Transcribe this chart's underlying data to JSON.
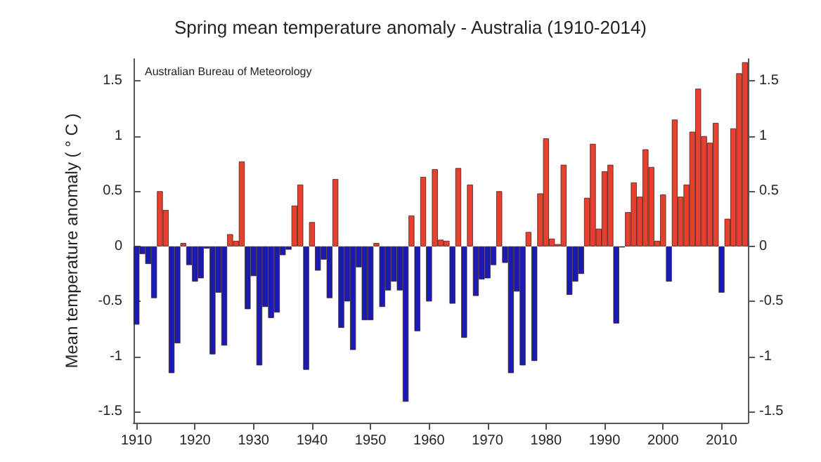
{
  "chart_data": {
    "type": "bar",
    "title": "Spring mean temperature anomaly - Australia (1910-2014)",
    "ylabel": "Mean temperature anomaly ( ° C )",
    "annotations": [
      "Australian Bureau of Meteorology"
    ],
    "x": [
      1910,
      1911,
      1912,
      1913,
      1914,
      1915,
      1916,
      1917,
      1918,
      1919,
      1920,
      1921,
      1922,
      1923,
      1924,
      1925,
      1926,
      1927,
      1928,
      1929,
      1930,
      1931,
      1932,
      1933,
      1934,
      1935,
      1936,
      1937,
      1938,
      1939,
      1940,
      1941,
      1942,
      1943,
      1944,
      1945,
      1946,
      1947,
      1948,
      1949,
      1950,
      1951,
      1952,
      1953,
      1954,
      1955,
      1956,
      1957,
      1958,
      1959,
      1960,
      1961,
      1962,
      1963,
      1964,
      1965,
      1966,
      1967,
      1968,
      1969,
      1970,
      1971,
      1972,
      1973,
      1974,
      1975,
      1976,
      1977,
      1978,
      1979,
      1980,
      1981,
      1982,
      1983,
      1984,
      1985,
      1986,
      1987,
      1988,
      1989,
      1990,
      1991,
      1992,
      1993,
      1994,
      1995,
      1996,
      1997,
      1998,
      1999,
      2000,
      2001,
      2002,
      2003,
      2004,
      2005,
      2006,
      2007,
      2008,
      2009,
      2010,
      2011,
      2012,
      2013,
      2014
    ],
    "values": [
      -0.71,
      -0.07,
      -0.16,
      -0.47,
      0.5,
      0.33,
      -1.15,
      -0.88,
      0.03,
      -0.17,
      -0.32,
      -0.29,
      -0.02,
      -0.98,
      -0.42,
      -0.9,
      0.11,
      0.05,
      0.77,
      -0.57,
      -0.27,
      -1.08,
      -0.55,
      -0.65,
      -0.6,
      -0.08,
      -0.03,
      0.37,
      0.56,
      -1.12,
      0.22,
      -0.22,
      -0.12,
      -0.47,
      0.61,
      -0.74,
      -0.5,
      -0.94,
      -0.19,
      -0.67,
      -0.67,
      0.03,
      -0.55,
      -0.4,
      -0.32,
      -0.4,
      -1.41,
      0.28,
      -0.77,
      0.63,
      -0.5,
      0.7,
      0.06,
      0.05,
      -0.52,
      0.71,
      -0.83,
      0.56,
      -0.45,
      -0.3,
      -0.29,
      -0.17,
      0.5,
      -0.15,
      -1.15,
      -0.41,
      -1.08,
      0.13,
      -1.04,
      0.48,
      0.98,
      0.07,
      0.02,
      0.74,
      -0.44,
      -0.32,
      -0.25,
      0.44,
      0.93,
      0.16,
      0.68,
      0.74,
      -0.7,
      -0.01,
      0.31,
      0.58,
      0.45,
      0.88,
      0.72,
      0.05,
      0.47,
      -0.32,
      1.15,
      0.45,
      0.56,
      1.04,
      1.43,
      1.0,
      0.94,
      1.12,
      -0.42,
      0.25,
      1.07,
      1.57,
      1.67
    ],
    "colors": [
      "#1a1ab4",
      "#1a1ab4",
      "#1a1ab4",
      "#1a1ab4",
      "#e8402f",
      "#e8402f",
      "#1a1ab4",
      "#1a1ab4",
      "#e8402f",
      "#1a1ab4",
      "#1a1ab4",
      "#1a1ab4",
      "#1a1ab4",
      "#1a1ab4",
      "#1a1ab4",
      "#1a1ab4",
      "#e8402f",
      "#e8402f",
      "#e8402f",
      "#1a1ab4",
      "#1a1ab4",
      "#1a1ab4",
      "#1a1ab4",
      "#1a1ab4",
      "#1a1ab4",
      "#1a1ab4",
      "#1a1ab4",
      "#e8402f",
      "#e8402f",
      "#1a1ab4",
      "#e8402f",
      "#1a1ab4",
      "#1a1ab4",
      "#1a1ab4",
      "#e8402f",
      "#1a1ab4",
      "#1a1ab4",
      "#1a1ab4",
      "#1a1ab4",
      "#1a1ab4",
      "#1a1ab4",
      "#e8402f",
      "#1a1ab4",
      "#1a1ab4",
      "#1a1ab4",
      "#1a1ab4",
      "#1a1ab4",
      "#e8402f",
      "#1a1ab4",
      "#e8402f",
      "#1a1ab4",
      "#e8402f",
      "#e8402f",
      "#e8402f",
      "#1a1ab4",
      "#e8402f",
      "#1a1ab4",
      "#e8402f",
      "#1a1ab4",
      "#1a1ab4",
      "#1a1ab4",
      "#1a1ab4",
      "#e8402f",
      "#1a1ab4",
      "#1a1ab4",
      "#1a1ab4",
      "#1a1ab4",
      "#e8402f",
      "#1a1ab4",
      "#e8402f",
      "#e8402f",
      "#e8402f",
      "#e8402f",
      "#e8402f",
      "#1a1ab4",
      "#1a1ab4",
      "#1a1ab4",
      "#e8402f",
      "#e8402f",
      "#e8402f",
      "#e8402f",
      "#e8402f",
      "#1a1ab4",
      "#1a1ab4",
      "#e8402f",
      "#e8402f",
      "#e8402f",
      "#e8402f",
      "#e8402f",
      "#e8402f",
      "#e8402f",
      "#1a1ab4",
      "#e8402f",
      "#e8402f",
      "#e8402f",
      "#e8402f",
      "#e8402f",
      "#e8402f",
      "#e8402f",
      "#e8402f",
      "#1a1ab4",
      "#e8402f",
      "#e8402f",
      "#e8402f",
      "#e8402f"
    ],
    "xlim": [
      1909.5,
      2014.5
    ],
    "xticks": [
      1910,
      1920,
      1930,
      1940,
      1950,
      1960,
      1970,
      1980,
      1990,
      2000,
      2010
    ],
    "ylim": [
      -1.6,
      1.7
    ],
    "yticks": [
      -1.5,
      -1,
      -0.5,
      0,
      0.5,
      1,
      1.5
    ],
    "y2lim": [
      -1.6,
      1.7
    ],
    "y2ticks": [
      -1.5,
      -1,
      -0.5,
      0,
      0.5,
      1,
      1.5
    ]
  }
}
